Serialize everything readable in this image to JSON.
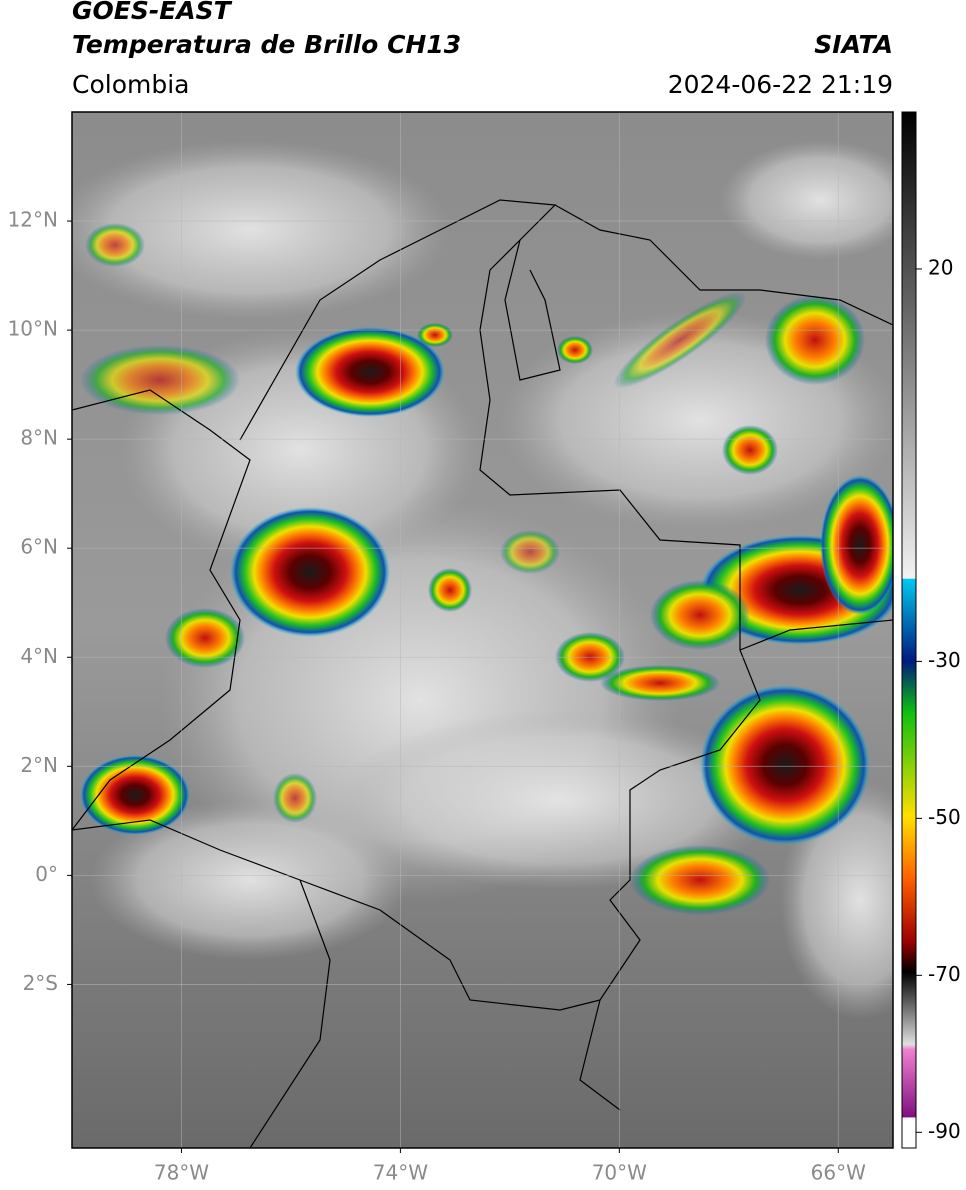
{
  "header": {
    "title": "GOES-EAST",
    "subtitle": "Temperatura de Brillo CH13",
    "region": "Colombia",
    "source": "SIATA",
    "timestamp": "2024-06-22 21:19"
  },
  "map": {
    "xlim": [
      -80,
      -65
    ],
    "ylim": [
      -5,
      14
    ],
    "grid": true,
    "xticks": [
      {
        "value": -78,
        "label": "78°W"
      },
      {
        "value": -74,
        "label": "74°W"
      },
      {
        "value": -70,
        "label": "70°W"
      },
      {
        "value": -66,
        "label": "66°W"
      }
    ],
    "yticks": [
      {
        "value": 12,
        "label": "12°N"
      },
      {
        "value": 10,
        "label": "10°N"
      },
      {
        "value": 8,
        "label": "8°N"
      },
      {
        "value": 6,
        "label": "6°N"
      },
      {
        "value": 4,
        "label": "4°N"
      },
      {
        "value": 2,
        "label": "2°N"
      },
      {
        "value": 0,
        "label": "0°"
      },
      {
        "value": -2,
        "label": "2°S"
      }
    ]
  },
  "colorbar": {
    "lim": [
      -92,
      40
    ],
    "ticks": [
      20,
      -30,
      -50,
      -70,
      -90
    ]
  }
}
